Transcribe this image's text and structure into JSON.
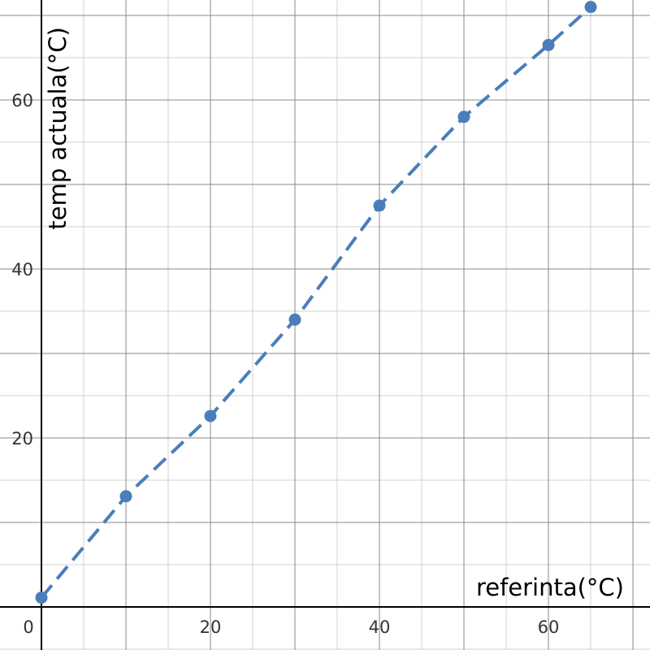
{
  "chart_data": {
    "type": "line",
    "xlabel": "referinta(°C)",
    "ylabel": "temp actuala(°C)",
    "xlim": [
      -5,
      72
    ],
    "ylim": [
      -5,
      72
    ],
    "x_ticks": [
      0,
      20,
      40,
      60
    ],
    "y_ticks": [
      20,
      40,
      60
    ],
    "minor_grid_step": 5,
    "major_grid_step": 10,
    "grid": true,
    "series": [
      {
        "x": [
          0,
          10,
          20,
          30,
          40,
          50,
          60,
          65
        ],
        "y": [
          1.1,
          13.1,
          22.6,
          34.0,
          47.5,
          58.0,
          66.5,
          71.0
        ],
        "color": "#4a7ebb",
        "line_style": "dashed",
        "marker": "circle"
      }
    ]
  }
}
